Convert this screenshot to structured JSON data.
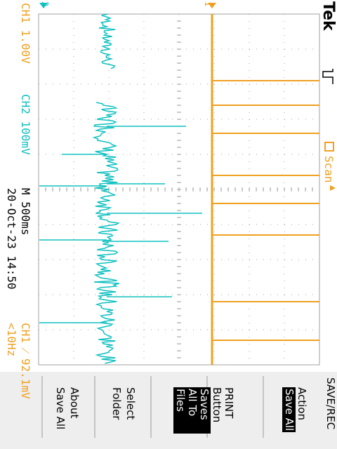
{
  "brand": "Tek",
  "trigger_icon": "pulse-trigger-icon",
  "status": {
    "scan_label": "Scan",
    "ch1_scale": "CH1  1.00V",
    "ch2_scale": "CH2  100mV",
    "timebase": "M 500ms",
    "date_time": "20-Oct-23 14:50",
    "trigger": "CH1 ⁄ 92.1mV",
    "frequency": "<10Hz",
    "ch1_marker": "1",
    "ch2_marker": "2"
  },
  "menu": {
    "title": "SAVE/REC",
    "action": {
      "label": "Action",
      "value": "Save All"
    },
    "print_button": {
      "label": "PRINT Button",
      "value": "Saves All To Files"
    },
    "select_folder": {
      "label": "Select Folder"
    },
    "about": {
      "label": "About Save All"
    }
  },
  "colors": {
    "ch1": "#f0a020",
    "ch2": "#10c0c0",
    "grid": "#a0a0a0",
    "menu_bg": "#eeeeee"
  },
  "ch1_pulse_times_div": [
    0.0,
    1.9,
    2.6,
    3.4,
    4.6,
    5.4,
    6.3,
    8.2,
    9.3
  ],
  "ch2_spike_times_div": [
    0.9,
    2.6,
    3.0,
    4.4,
    6.0,
    7.4,
    8.2,
    9.6
  ]
}
